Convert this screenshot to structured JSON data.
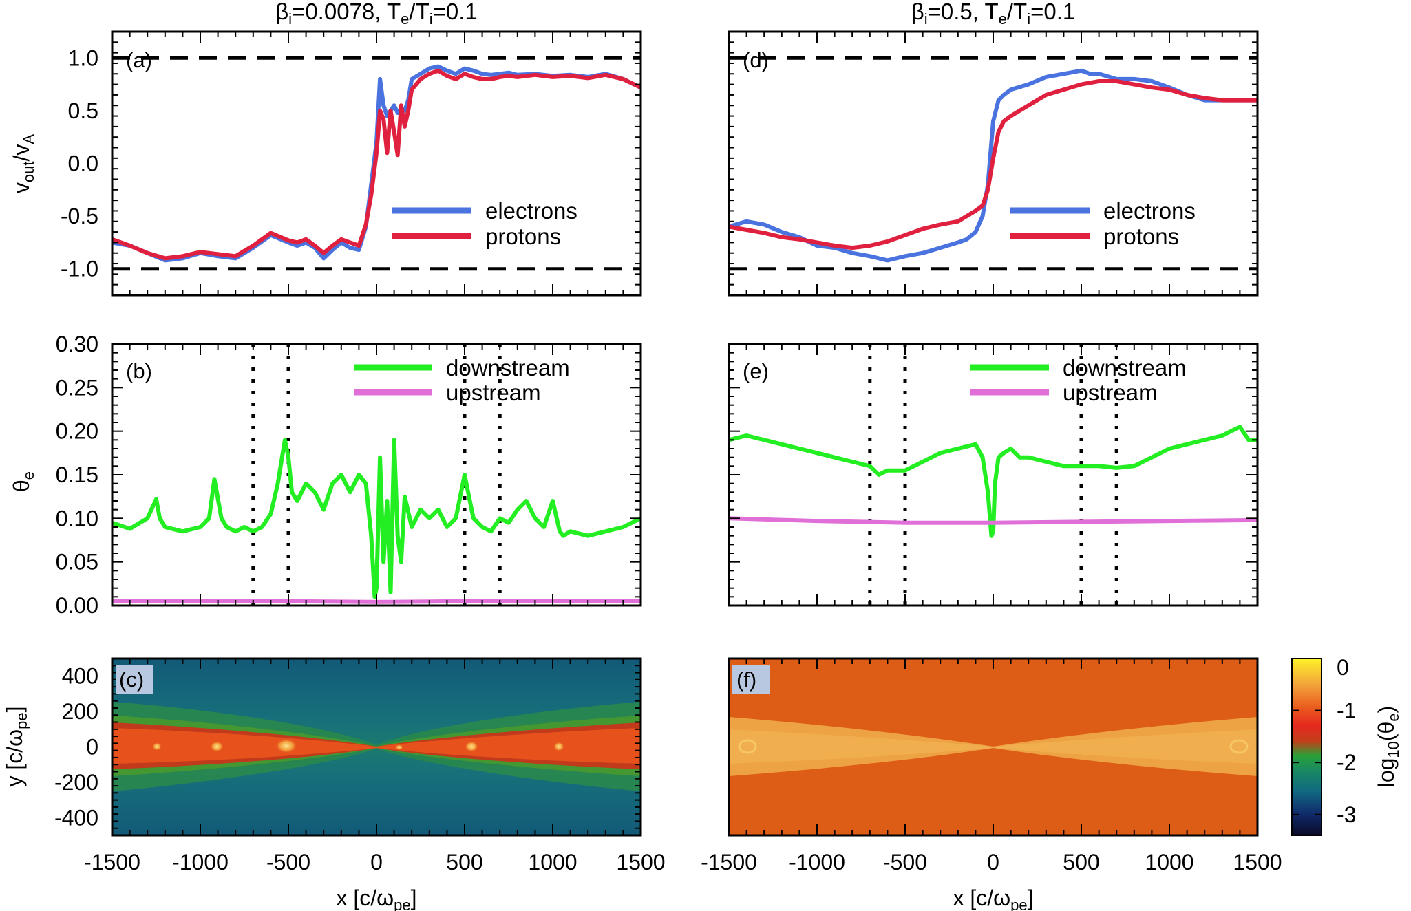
{
  "titles": {
    "left": {
      "beta": "β",
      "beta_sub": "i",
      "beta_val": "=0.0078, T",
      "te_sub": "e",
      "slash": "/T",
      "ti_sub": "i",
      "ratio": "=0.1"
    },
    "right": {
      "beta": "β",
      "beta_sub": "i",
      "beta_val": "=0.5, T",
      "te_sub": "e",
      "slash": "/T",
      "ti_sub": "i",
      "ratio": "=0.1"
    }
  },
  "colors": {
    "electrons": "#4a73e0",
    "protons": "#e0203f",
    "downstream": "#22ee22",
    "upstream": "#e070d8"
  },
  "chart_data": [
    {
      "panel": "(a)",
      "type": "line",
      "xlim": [
        -1500,
        1500
      ],
      "ylim": [
        -1.25,
        1.25
      ],
      "ylabel": {
        "main": "v",
        "sub1": "out",
        "mid": "/v",
        "sub2": "A"
      },
      "xticks": [
        -1500,
        -1000,
        -500,
        0,
        500,
        1000,
        1500
      ],
      "yticks": [
        -1.0,
        -0.5,
        0.0,
        0.5,
        1.0
      ],
      "yticklabels": [
        "-1.0",
        "-0.5",
        "0.0",
        "0.5",
        "1.0"
      ],
      "hlines": [
        -1.0,
        1.0
      ],
      "legend": [
        "electrons",
        "protons"
      ],
      "series": [
        {
          "name": "electrons",
          "x": [
            -1500,
            -1400,
            -1300,
            -1200,
            -1100,
            -1000,
            -900,
            -800,
            -700,
            -600,
            -500,
            -450,
            -400,
            -350,
            -300,
            -250,
            -200,
            -150,
            -100,
            -60,
            -30,
            0,
            20,
            40,
            60,
            80,
            100,
            120,
            140,
            160,
            180,
            200,
            250,
            300,
            350,
            400,
            450,
            500,
            550,
            600,
            650,
            700,
            750,
            800,
            900,
            1000,
            1100,
            1200,
            1300,
            1400,
            1500
          ],
          "y": [
            -0.75,
            -0.78,
            -0.85,
            -0.92,
            -0.9,
            -0.85,
            -0.88,
            -0.9,
            -0.8,
            -0.68,
            -0.75,
            -0.78,
            -0.75,
            -0.8,
            -0.9,
            -0.82,
            -0.75,
            -0.8,
            -0.82,
            -0.6,
            -0.2,
            0.2,
            0.8,
            0.55,
            0.45,
            0.5,
            0.55,
            0.48,
            0.52,
            0.5,
            0.6,
            0.8,
            0.85,
            0.9,
            0.92,
            0.88,
            0.85,
            0.9,
            0.88,
            0.85,
            0.84,
            0.85,
            0.86,
            0.84,
            0.85,
            0.83,
            0.84,
            0.82,
            0.85,
            0.8,
            0.72
          ]
        },
        {
          "name": "protons",
          "x": [
            -1500,
            -1400,
            -1300,
            -1200,
            -1100,
            -1000,
            -900,
            -800,
            -700,
            -600,
            -500,
            -450,
            -400,
            -350,
            -300,
            -250,
            -200,
            -150,
            -100,
            -60,
            -30,
            0,
            20,
            40,
            60,
            80,
            100,
            120,
            140,
            160,
            180,
            200,
            250,
            300,
            350,
            400,
            450,
            500,
            550,
            600,
            650,
            700,
            750,
            800,
            900,
            1000,
            1100,
            1200,
            1300,
            1400,
            1500
          ],
          "y": [
            -0.72,
            -0.78,
            -0.85,
            -0.9,
            -0.88,
            -0.84,
            -0.86,
            -0.88,
            -0.78,
            -0.66,
            -0.73,
            -0.75,
            -0.72,
            -0.78,
            -0.85,
            -0.78,
            -0.72,
            -0.75,
            -0.78,
            -0.58,
            -0.3,
            0.1,
            0.5,
            0.42,
            0.1,
            0.5,
            0.3,
            0.08,
            0.55,
            0.35,
            0.5,
            0.7,
            0.8,
            0.85,
            0.88,
            0.83,
            0.8,
            0.85,
            0.82,
            0.8,
            0.8,
            0.82,
            0.83,
            0.82,
            0.84,
            0.82,
            0.83,
            0.81,
            0.84,
            0.8,
            0.72
          ]
        }
      ]
    },
    {
      "panel": "(b)",
      "type": "line",
      "xlim": [
        -1500,
        1500
      ],
      "ylim": [
        0,
        0.3
      ],
      "ylabel": {
        "main": "θ",
        "sub1": "e"
      },
      "xticks": [
        -1500,
        -1000,
        -500,
        0,
        500,
        1000,
        1500
      ],
      "yticks": [
        0.0,
        0.05,
        0.1,
        0.15,
        0.2,
        0.25,
        0.3
      ],
      "yticklabels": [
        "0.00",
        "0.05",
        "0.10",
        "0.15",
        "0.20",
        "0.25",
        "0.30"
      ],
      "vlines": [
        -700,
        -500,
        500,
        700
      ],
      "legend": [
        "downstream",
        "upstream"
      ],
      "series": [
        {
          "name": "downstream",
          "x": [
            -1500,
            -1400,
            -1300,
            -1250,
            -1230,
            -1200,
            -1100,
            -1000,
            -950,
            -920,
            -880,
            -850,
            -800,
            -750,
            -700,
            -650,
            -600,
            -560,
            -520,
            -500,
            -480,
            -450,
            -400,
            -350,
            -300,
            -250,
            -200,
            -150,
            -100,
            -60,
            -30,
            -10,
            0,
            20,
            40,
            60,
            80,
            100,
            120,
            140,
            160,
            200,
            250,
            300,
            350,
            400,
            450,
            500,
            520,
            550,
            600,
            650,
            700,
            750,
            800,
            850,
            900,
            950,
            1000,
            1040,
            1060,
            1100,
            1200,
            1300,
            1400,
            1500
          ],
          "y": [
            0.095,
            0.088,
            0.1,
            0.122,
            0.1,
            0.09,
            0.085,
            0.09,
            0.1,
            0.145,
            0.1,
            0.09,
            0.085,
            0.09,
            0.085,
            0.09,
            0.105,
            0.14,
            0.19,
            0.17,
            0.13,
            0.12,
            0.14,
            0.13,
            0.11,
            0.14,
            0.15,
            0.13,
            0.15,
            0.14,
            0.08,
            0.01,
            0.02,
            0.17,
            0.05,
            0.12,
            0.015,
            0.19,
            0.08,
            0.05,
            0.125,
            0.09,
            0.11,
            0.1,
            0.11,
            0.09,
            0.1,
            0.15,
            0.13,
            0.1,
            0.09,
            0.085,
            0.1,
            0.095,
            0.11,
            0.12,
            0.1,
            0.09,
            0.12,
            0.085,
            0.08,
            0.085,
            0.08,
            0.085,
            0.09,
            0.1
          ]
        },
        {
          "name": "upstream",
          "x": [
            -1500,
            -1000,
            -500,
            0,
            500,
            1000,
            1500
          ],
          "y": [
            0.005,
            0.005,
            0.005,
            0.004,
            0.005,
            0.005,
            0.005
          ]
        }
      ]
    },
    {
      "panel": "(c)",
      "type": "heatmap",
      "xlim": [
        -1500,
        1500
      ],
      "ylim": [
        -500,
        500
      ],
      "xlabel": {
        "main": "x [c/ω",
        "sub": "pe",
        "end": "]"
      },
      "ylabel": {
        "main": "y [c/ω",
        "sub": "pe",
        "end": "]"
      },
      "xticks": [
        -1500,
        -1000,
        -500,
        0,
        500,
        1000,
        1500
      ],
      "xticklabels": [
        "-1500",
        "-1000",
        "-500",
        "0",
        "500",
        "1000",
        "1500"
      ],
      "yticks": [
        -400,
        -200,
        0,
        200,
        400
      ],
      "yticklabels": [
        "-400",
        "-200",
        "0",
        "200",
        "400"
      ],
      "colorbar_quantity": "log10(θe)"
    },
    {
      "panel": "(d)",
      "type": "line",
      "xlim": [
        -1500,
        1500
      ],
      "ylim": [
        -1.25,
        1.25
      ],
      "xticks": [
        -1500,
        -1000,
        -500,
        0,
        500,
        1000,
        1500
      ],
      "yticks": [
        -1.0,
        -0.5,
        0.0,
        0.5,
        1.0
      ],
      "hlines": [
        -1.0,
        1.0
      ],
      "legend": [
        "electrons",
        "protons"
      ],
      "series": [
        {
          "name": "electrons",
          "x": [
            -1500,
            -1400,
            -1300,
            -1200,
            -1100,
            -1000,
            -900,
            -800,
            -700,
            -600,
            -500,
            -400,
            -300,
            -200,
            -150,
            -100,
            -60,
            -30,
            0,
            30,
            60,
            100,
            200,
            300,
            400,
            500,
            550,
            600,
            700,
            800,
            900,
            1000,
            1100,
            1200,
            1300,
            1400,
            1500
          ],
          "y": [
            -0.6,
            -0.55,
            -0.58,
            -0.65,
            -0.7,
            -0.78,
            -0.8,
            -0.85,
            -0.88,
            -0.92,
            -0.88,
            -0.85,
            -0.8,
            -0.75,
            -0.72,
            -0.65,
            -0.5,
            -0.2,
            0.4,
            0.6,
            0.65,
            0.7,
            0.75,
            0.82,
            0.85,
            0.88,
            0.85,
            0.85,
            0.8,
            0.8,
            0.78,
            0.72,
            0.65,
            0.6,
            0.6,
            0.6,
            0.6
          ]
        },
        {
          "name": "protons",
          "x": [
            -1500,
            -1400,
            -1300,
            -1200,
            -1100,
            -1000,
            -900,
            -800,
            -700,
            -600,
            -500,
            -400,
            -300,
            -200,
            -150,
            -100,
            -60,
            -30,
            0,
            30,
            60,
            100,
            200,
            300,
            400,
            500,
            600,
            700,
            800,
            900,
            1000,
            1100,
            1200,
            1300,
            1400,
            1500
          ],
          "y": [
            -0.6,
            -0.63,
            -0.66,
            -0.7,
            -0.72,
            -0.75,
            -0.78,
            -0.8,
            -0.78,
            -0.74,
            -0.68,
            -0.62,
            -0.58,
            -0.55,
            -0.5,
            -0.45,
            -0.4,
            -0.25,
            0.05,
            0.3,
            0.4,
            0.45,
            0.55,
            0.65,
            0.7,
            0.75,
            0.78,
            0.78,
            0.75,
            0.72,
            0.7,
            0.65,
            0.62,
            0.6,
            0.6,
            0.6
          ]
        }
      ]
    },
    {
      "panel": "(e)",
      "type": "line",
      "xlim": [
        -1500,
        1500
      ],
      "ylim": [
        0,
        0.3
      ],
      "xticks": [
        -1500,
        -1000,
        -500,
        0,
        500,
        1000,
        1500
      ],
      "yticks": [
        0.0,
        0.05,
        0.1,
        0.15,
        0.2,
        0.25,
        0.3
      ],
      "vlines": [
        -700,
        -500,
        500,
        700
      ],
      "legend": [
        "downstream",
        "upstream"
      ],
      "series": [
        {
          "name": "downstream",
          "x": [
            -1500,
            -1400,
            -1300,
            -1200,
            -1100,
            -1000,
            -900,
            -800,
            -700,
            -650,
            -600,
            -500,
            -400,
            -300,
            -200,
            -100,
            -60,
            -30,
            -10,
            0,
            10,
            30,
            60,
            100,
            150,
            200,
            300,
            400,
            500,
            600,
            700,
            800,
            900,
            1000,
            1100,
            1200,
            1300,
            1400,
            1450,
            1500
          ],
          "y": [
            0.19,
            0.195,
            0.19,
            0.185,
            0.18,
            0.175,
            0.17,
            0.165,
            0.16,
            0.15,
            0.155,
            0.155,
            0.165,
            0.175,
            0.18,
            0.185,
            0.17,
            0.13,
            0.08,
            0.085,
            0.14,
            0.17,
            0.175,
            0.18,
            0.17,
            0.17,
            0.165,
            0.16,
            0.16,
            0.16,
            0.158,
            0.16,
            0.17,
            0.18,
            0.185,
            0.19,
            0.195,
            0.205,
            0.19,
            0.19
          ]
        },
        {
          "name": "upstream",
          "x": [
            -1500,
            -1000,
            -500,
            0,
            500,
            1000,
            1500
          ],
          "y": [
            0.1,
            0.097,
            0.095,
            0.095,
            0.096,
            0.097,
            0.098
          ]
        }
      ]
    },
    {
      "panel": "(f)",
      "type": "heatmap",
      "xlim": [
        -1500,
        1500
      ],
      "ylim": [
        -500,
        500
      ],
      "xlabel": {
        "main": "x [c/ω",
        "sub": "pe",
        "end": "]"
      },
      "xticks": [
        -1500,
        -1000,
        -500,
        0,
        500,
        1000,
        1500
      ],
      "xticklabels": [
        "-1500",
        "-1000",
        "-500",
        "0",
        "500",
        "1000",
        "1500"
      ],
      "colorbar": {
        "range": [
          -3.4,
          0
        ],
        "ticks": [
          0,
          -1,
          -2,
          -3
        ],
        "ticklabels": [
          "0",
          "-1",
          "-2",
          "-3"
        ],
        "label": {
          "main": "log",
          "sub1": "10",
          "mid": "(θ",
          "sub2": "e",
          "end": ")"
        }
      }
    }
  ]
}
